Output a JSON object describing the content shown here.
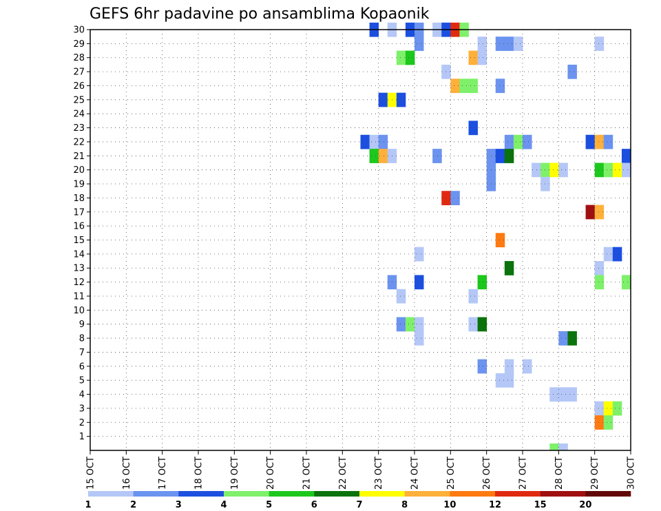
{
  "chart_data": {
    "type": "heatmap",
    "title": "GEFS 6hr padavine po ansamblima Kopaonik",
    "xlabel": "",
    "ylabel": "",
    "x_range": [
      "15 OCT",
      "30 OCT"
    ],
    "y_range": [
      0,
      30
    ],
    "x_ticks": [
      "15 OCT",
      "16 OCT",
      "17 OCT",
      "18 OCT",
      "19 OCT",
      "20 OCT",
      "21 OCT",
      "22 OCT",
      "23 OCT",
      "24 OCT",
      "25 OCT",
      "26 OCT",
      "27 OCT",
      "28 OCT",
      "29 OCT",
      "30 OCT"
    ],
    "y_ticks": [
      "1",
      "2",
      "3",
      "4",
      "5",
      "6",
      "7",
      "8",
      "9",
      "10",
      "11",
      "12",
      "13",
      "14",
      "15",
      "16",
      "17",
      "18",
      "19",
      "20",
      "21",
      "22",
      "23",
      "24",
      "25",
      "26",
      "27",
      "28",
      "29",
      "30"
    ],
    "grid": true,
    "colorbar": {
      "levels": [
        "1",
        "2",
        "3",
        "4",
        "5",
        "6",
        "7",
        "8",
        "10",
        "12",
        "15",
        "20"
      ],
      "colors": [
        "#b4c7f7",
        "#6b93ef",
        "#1c4fe0",
        "#7ef06a",
        "#1cc81c",
        "#0b730b",
        "#ffff00",
        "#ffb03a",
        "#ff7a10",
        "#e02a10",
        "#a01010",
        "#620808"
      ]
    },
    "cells": [
      {
        "step": 31,
        "member": 30,
        "color": 2
      },
      {
        "step": 33,
        "member": 30,
        "color": 0
      },
      {
        "step": 35,
        "member": 30,
        "color": 2
      },
      {
        "step": 36,
        "member": 30,
        "color": 1
      },
      {
        "step": 38,
        "member": 30,
        "color": 0
      },
      {
        "step": 39,
        "member": 30,
        "color": 2
      },
      {
        "step": 40,
        "member": 30,
        "color": 9
      },
      {
        "step": 41,
        "member": 30,
        "color": 3
      },
      {
        "step": 36,
        "member": 29,
        "color": 1
      },
      {
        "step": 43,
        "member": 29,
        "color": 0
      },
      {
        "step": 45,
        "member": 29,
        "color": 1
      },
      {
        "step": 46,
        "member": 29,
        "color": 1
      },
      {
        "step": 47,
        "member": 29,
        "color": 0
      },
      {
        "step": 56,
        "member": 29,
        "color": 0
      },
      {
        "step": 34,
        "member": 28,
        "color": 3
      },
      {
        "step": 35,
        "member": 28,
        "color": 4
      },
      {
        "step": 42,
        "member": 28,
        "color": 7
      },
      {
        "step": 43,
        "member": 28,
        "color": 0
      },
      {
        "step": 39,
        "member": 27,
        "color": 0
      },
      {
        "step": 53,
        "member": 27,
        "color": 1
      },
      {
        "step": 40,
        "member": 26,
        "color": 7
      },
      {
        "step": 41,
        "member": 26,
        "color": 3
      },
      {
        "step": 42,
        "member": 26,
        "color": 3
      },
      {
        "step": 45,
        "member": 26,
        "color": 1
      },
      {
        "step": 32,
        "member": 25,
        "color": 2
      },
      {
        "step": 33,
        "member": 25,
        "color": 6
      },
      {
        "step": 34,
        "member": 25,
        "color": 2
      },
      {
        "step": 42,
        "member": 23,
        "color": 2
      },
      {
        "step": 30,
        "member": 22,
        "color": 2
      },
      {
        "step": 31,
        "member": 22,
        "color": 0
      },
      {
        "step": 32,
        "member": 22,
        "color": 1
      },
      {
        "step": 46,
        "member": 22,
        "color": 1
      },
      {
        "step": 47,
        "member": 22,
        "color": 3
      },
      {
        "step": 48,
        "member": 22,
        "color": 1
      },
      {
        "step": 55,
        "member": 22,
        "color": 2
      },
      {
        "step": 56,
        "member": 22,
        "color": 7
      },
      {
        "step": 57,
        "member": 22,
        "color": 1
      },
      {
        "step": 31,
        "member": 21,
        "color": 4
      },
      {
        "step": 32,
        "member": 21,
        "color": 7
      },
      {
        "step": 33,
        "member": 21,
        "color": 0
      },
      {
        "step": 38,
        "member": 21,
        "color": 1
      },
      {
        "step": 44,
        "member": 21,
        "color": 1
      },
      {
        "step": 45,
        "member": 21,
        "color": 2
      },
      {
        "step": 46,
        "member": 21,
        "color": 5
      },
      {
        "step": 59,
        "member": 21,
        "color": 2
      },
      {
        "step": 44,
        "member": 20,
        "color": 1
      },
      {
        "step": 49,
        "member": 20,
        "color": 0
      },
      {
        "step": 50,
        "member": 20,
        "color": 3
      },
      {
        "step": 51,
        "member": 20,
        "color": 6
      },
      {
        "step": 52,
        "member": 20,
        "color": 0
      },
      {
        "step": 56,
        "member": 20,
        "color": 4
      },
      {
        "step": 57,
        "member": 20,
        "color": 3
      },
      {
        "step": 58,
        "member": 20,
        "color": 6
      },
      {
        "step": 59,
        "member": 20,
        "color": 0
      },
      {
        "step": 44,
        "member": 19,
        "color": 1
      },
      {
        "step": 50,
        "member": 19,
        "color": 0
      },
      {
        "step": 39,
        "member": 18,
        "color": 9
      },
      {
        "step": 40,
        "member": 18,
        "color": 1
      },
      {
        "step": 55,
        "member": 17,
        "color": 10
      },
      {
        "step": 56,
        "member": 17,
        "color": 7
      },
      {
        "step": 45,
        "member": 15,
        "color": 8
      },
      {
        "step": 36,
        "member": 14,
        "color": 0
      },
      {
        "step": 57,
        "member": 14,
        "color": 0
      },
      {
        "step": 58,
        "member": 14,
        "color": 2
      },
      {
        "step": 46,
        "member": 13,
        "color": 5
      },
      {
        "step": 56,
        "member": 13,
        "color": 0
      },
      {
        "step": 33,
        "member": 12,
        "color": 1
      },
      {
        "step": 36,
        "member": 12,
        "color": 2
      },
      {
        "step": 43,
        "member": 12,
        "color": 4
      },
      {
        "step": 56,
        "member": 12,
        "color": 3
      },
      {
        "step": 59,
        "member": 12,
        "color": 3
      },
      {
        "step": 34,
        "member": 11,
        "color": 0
      },
      {
        "step": 42,
        "member": 11,
        "color": 0
      },
      {
        "step": 34,
        "member": 9,
        "color": 1
      },
      {
        "step": 35,
        "member": 9,
        "color": 3
      },
      {
        "step": 36,
        "member": 9,
        "color": 0
      },
      {
        "step": 42,
        "member": 9,
        "color": 0
      },
      {
        "step": 43,
        "member": 9,
        "color": 5
      },
      {
        "step": 36,
        "member": 8,
        "color": 0
      },
      {
        "step": 52,
        "member": 8,
        "color": 1
      },
      {
        "step": 53,
        "member": 8,
        "color": 5
      },
      {
        "step": 43,
        "member": 6,
        "color": 1
      },
      {
        "step": 46,
        "member": 6,
        "color": 0
      },
      {
        "step": 48,
        "member": 6,
        "color": 0
      },
      {
        "step": 45,
        "member": 5,
        "color": 0
      },
      {
        "step": 46,
        "member": 5,
        "color": 0
      },
      {
        "step": 51,
        "member": 4,
        "color": 0
      },
      {
        "step": 52,
        "member": 4,
        "color": 0
      },
      {
        "step": 53,
        "member": 4,
        "color": 0
      },
      {
        "step": 56,
        "member": 3,
        "color": 0
      },
      {
        "step": 57,
        "member": 3,
        "color": 6
      },
      {
        "step": 58,
        "member": 3,
        "color": 3
      },
      {
        "step": 56,
        "member": 2,
        "color": 8
      },
      {
        "step": 57,
        "member": 2,
        "color": 3
      },
      {
        "step": 51,
        "member": 0,
        "color": 3
      },
      {
        "step": 52,
        "member": 0,
        "color": 0
      }
    ]
  }
}
